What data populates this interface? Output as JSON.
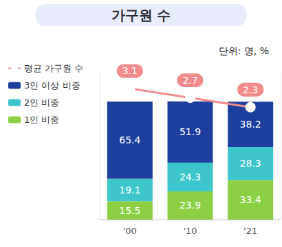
{
  "chart_data": {
    "type": "bar",
    "title": "가구원 수",
    "subtitle": "단위: 명, %",
    "categories": [
      "'00",
      "'10",
      "'21"
    ],
    "series": [
      {
        "name": "평균 가구원 수",
        "type": "line",
        "color": "#f28b8b",
        "marker": "circle",
        "axis": "y2",
        "values": [
          3.1,
          2.7,
          2.3
        ]
      },
      {
        "name": "3인 이상 비중",
        "color": "#1f3f9f",
        "values": [
          65.4,
          51.9,
          38.2
        ]
      },
      {
        "name": "2인 비중",
        "color": "#3ec6cc",
        "values": [
          19.1,
          24.3,
          28.3
        ]
      },
      {
        "name": "1인 비중",
        "color": "#8ccf45",
        "values": [
          15.5,
          23.9,
          33.4
        ]
      }
    ],
    "stacked": true,
    "data_labels": true,
    "ylim": [
      0,
      125
    ],
    "y2lim": [
      -2.5,
      3.8
    ],
    "tick_labels": "x",
    "grid": false,
    "legend": "left"
  }
}
